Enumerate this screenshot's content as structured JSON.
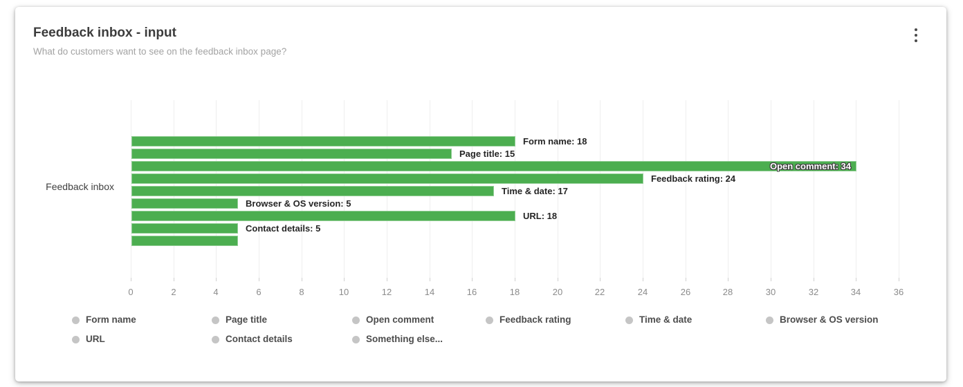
{
  "widget": {
    "title": "Feedback inbox - input",
    "subtitle": "What do customers want to see on the feedback inbox page?",
    "menu_icon": "kebab-vertical-icon"
  },
  "colors": {
    "bar": "#4cae50",
    "grid": "#eeeeee",
    "tick_mark": "#cfcfcf",
    "axis_text": "#8b8b8b",
    "title_text": "#3c3c3c",
    "subtitle_text": "#a3a3a3",
    "value_label_text": "#252525",
    "inside_label_text": "#ffffff",
    "legend_icon": "#c5c5c5",
    "legend_text": "#4d4d4d"
  },
  "chart_data": {
    "type": "bar",
    "orientation": "horizontal",
    "title": "Feedback inbox - input",
    "subtitle": "What do customers want to see on the feedback inbox page?",
    "category_group": "Feedback inbox",
    "series": [
      {
        "name": "Form name",
        "value": 18,
        "label": "Form name: 18",
        "label_position": "outside"
      },
      {
        "name": "Page title",
        "value": 15,
        "label": "Page title: 15",
        "label_position": "outside"
      },
      {
        "name": "Open comment",
        "value": 34,
        "label": "Open comment: 34",
        "label_position": "inside"
      },
      {
        "name": "Feedback rating",
        "value": 24,
        "label": "Feedback rating: 24",
        "label_position": "outside"
      },
      {
        "name": "Time & date",
        "value": 17,
        "label": "Time & date: 17",
        "label_position": "outside"
      },
      {
        "name": "Browser & OS version",
        "value": 5,
        "label": "Browser & OS version: 5",
        "label_position": "outside"
      },
      {
        "name": "URL",
        "value": 18,
        "label": "URL: 18",
        "label_position": "outside"
      },
      {
        "name": "Contact details",
        "value": 5,
        "label": "Contact details: 5",
        "label_position": "outside"
      },
      {
        "name": "Something else...",
        "value": 5,
        "label": "",
        "label_position": "none"
      }
    ],
    "xlim": [
      0,
      36
    ],
    "x_tick_step": 2,
    "x_ticks": [
      0,
      2,
      4,
      6,
      8,
      10,
      12,
      14,
      16,
      18,
      20,
      22,
      24,
      26,
      28,
      30,
      32,
      34,
      36
    ],
    "grid": "vertical",
    "xlabel": "",
    "ylabel": "",
    "legend": {
      "position": "bottom",
      "rows": [
        [
          "Form name",
          "Page title",
          "Open comment",
          "Feedback rating",
          "Time & date",
          "Browser & OS version"
        ],
        [
          "URL",
          "Contact details",
          "Something else..."
        ]
      ]
    }
  }
}
